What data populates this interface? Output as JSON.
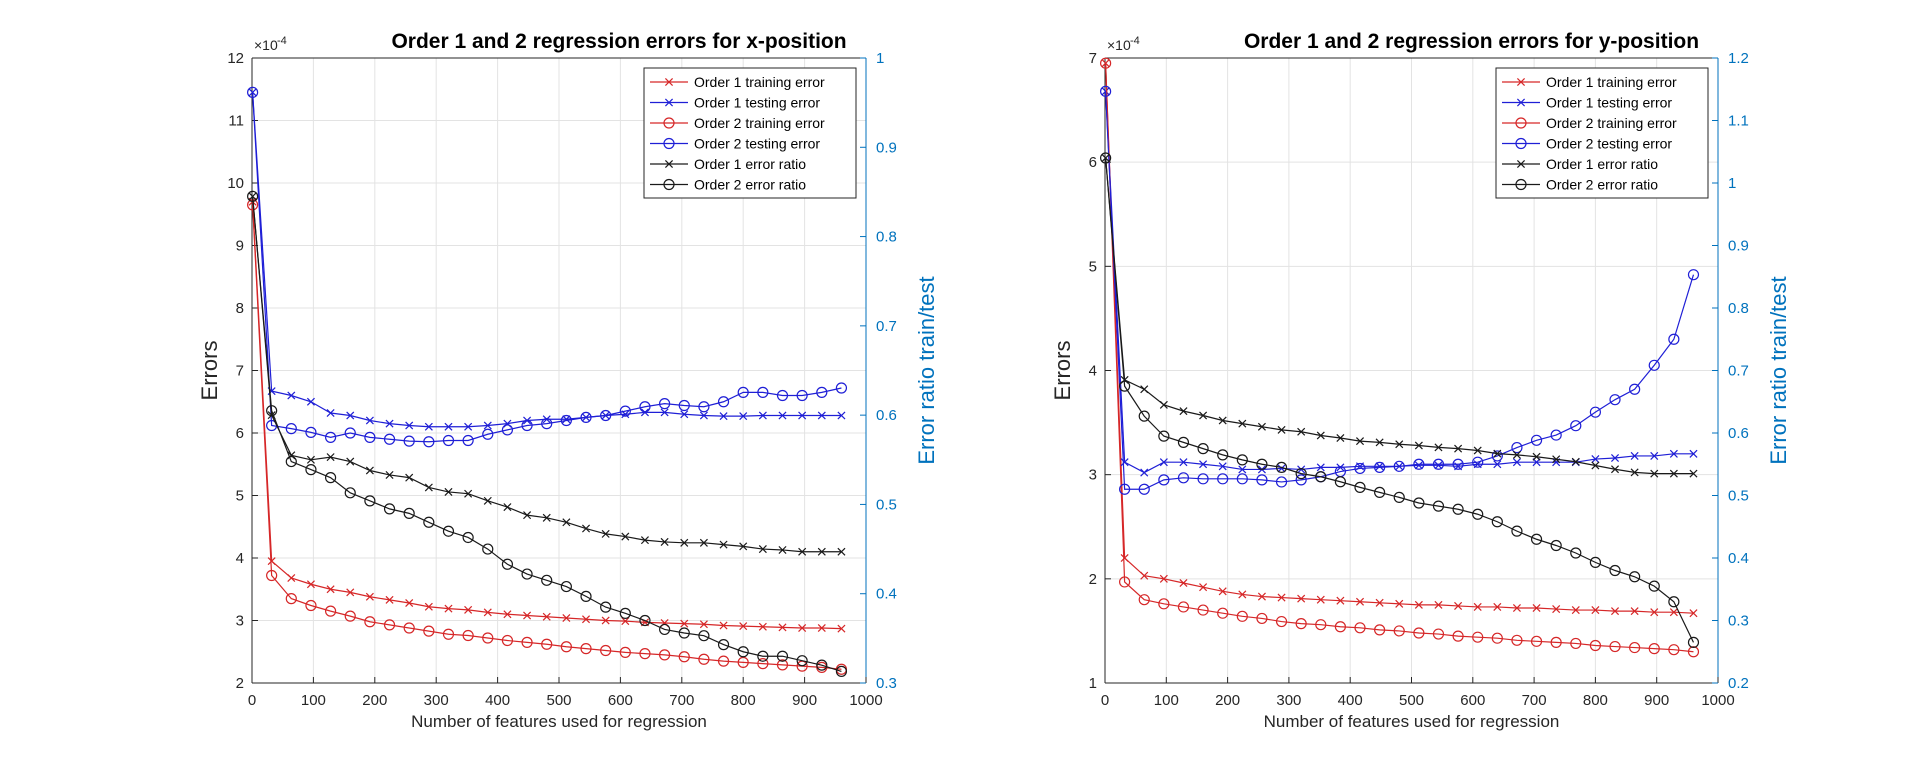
{
  "colors": {
    "red": "#d62728",
    "blue": "#1f1fd6",
    "black": "#1a1a1a",
    "right_axis": "#0072BD",
    "grid": "#e3e3e3"
  },
  "chart_data": [
    {
      "type": "line",
      "title": "Order 1 and 2 regression errors for x-position",
      "xlabel": "Number of features used for regression",
      "ylabel": "Errors",
      "y2label": "Error ratio train/test",
      "exponent_label": "×10",
      "exponent_power": "-4",
      "xlim": [
        0,
        1000
      ],
      "ylim": [
        2,
        12
      ],
      "y2lim": [
        0.3,
        1
      ],
      "xticks": [
        "0",
        "100",
        "200",
        "300",
        "400",
        "500",
        "600",
        "700",
        "800",
        "900",
        "1000"
      ],
      "yticks": [
        "2",
        "3",
        "4",
        "5",
        "6",
        "7",
        "8",
        "9",
        "10",
        "11",
        "12"
      ],
      "y2ticks": [
        "0.3",
        "0.4",
        "0.5",
        "0.6",
        "0.7",
        "0.8",
        "0.9",
        "1"
      ],
      "x": [
        1,
        32,
        64,
        96,
        128,
        160,
        192,
        224,
        256,
        288,
        320,
        352,
        384,
        416,
        448,
        480,
        512,
        544,
        576,
        608,
        640,
        672,
        704,
        736,
        768,
        800,
        832,
        864,
        896,
        928,
        960
      ],
      "legend": {
        "position": "top-right",
        "entries": [
          "Order 1 training error",
          "Order 1 testing error",
          "Order 2 training error",
          "Order 2 testing error",
          "Order 1 error ratio",
          "Order 2 error ratio"
        ]
      },
      "series": [
        {
          "name": "Order 1 training error",
          "axis": "left",
          "color": "red",
          "marker": "x",
          "values": [
            9.7,
            3.95,
            3.68,
            3.58,
            3.5,
            3.45,
            3.38,
            3.33,
            3.28,
            3.22,
            3.19,
            3.17,
            3.13,
            3.1,
            3.08,
            3.06,
            3.04,
            3.02,
            3.0,
            2.99,
            2.97,
            2.96,
            2.95,
            2.94,
            2.92,
            2.91,
            2.9,
            2.89,
            2.88,
            2.88,
            2.87
          ]
        },
        {
          "name": "Order 1 testing error",
          "axis": "left",
          "color": "blue",
          "marker": "x",
          "values": [
            11.45,
            6.67,
            6.6,
            6.5,
            6.32,
            6.28,
            6.2,
            6.15,
            6.12,
            6.1,
            6.1,
            6.1,
            6.12,
            6.15,
            6.2,
            6.22,
            6.22,
            6.25,
            6.28,
            6.3,
            6.33,
            6.33,
            6.3,
            6.28,
            6.27,
            6.27,
            6.28,
            6.28,
            6.28,
            6.28,
            6.28
          ]
        },
        {
          "name": "Order 2 training error",
          "axis": "left",
          "color": "red",
          "marker": "o",
          "values": [
            9.65,
            3.72,
            3.35,
            3.24,
            3.15,
            3.07,
            2.98,
            2.93,
            2.88,
            2.83,
            2.78,
            2.76,
            2.72,
            2.68,
            2.65,
            2.62,
            2.58,
            2.55,
            2.52,
            2.49,
            2.47,
            2.45,
            2.42,
            2.38,
            2.35,
            2.33,
            2.31,
            2.29,
            2.27,
            2.25,
            2.22
          ]
        },
        {
          "name": "Order 2 testing error",
          "axis": "left",
          "color": "blue",
          "marker": "o",
          "values": [
            11.45,
            6.12,
            6.07,
            6.01,
            5.93,
            6.0,
            5.93,
            5.9,
            5.87,
            5.86,
            5.88,
            5.88,
            5.98,
            6.05,
            6.12,
            6.15,
            6.2,
            6.25,
            6.28,
            6.35,
            6.42,
            6.47,
            6.44,
            6.42,
            6.5,
            6.65,
            6.65,
            6.6,
            6.6,
            6.65,
            6.72
          ]
        },
        {
          "name": "Order 1 error ratio",
          "axis": "right",
          "color": "black",
          "marker": "x",
          "values": [
            0.845,
            0.6,
            0.555,
            0.55,
            0.553,
            0.548,
            0.538,
            0.533,
            0.53,
            0.519,
            0.514,
            0.512,
            0.504,
            0.497,
            0.488,
            0.485,
            0.48,
            0.473,
            0.467,
            0.464,
            0.46,
            0.458,
            0.457,
            0.457,
            0.455,
            0.453,
            0.45,
            0.449,
            0.447,
            0.447,
            0.447
          ]
        },
        {
          "name": "Order 2 error ratio",
          "axis": "right",
          "color": "black",
          "marker": "o",
          "values": [
            0.845,
            0.605,
            0.548,
            0.539,
            0.53,
            0.513,
            0.504,
            0.495,
            0.49,
            0.48,
            0.47,
            0.463,
            0.45,
            0.433,
            0.422,
            0.415,
            0.408,
            0.397,
            0.385,
            0.378,
            0.37,
            0.36,
            0.356,
            0.353,
            0.343,
            0.335,
            0.33,
            0.33,
            0.325,
            0.32,
            0.313
          ]
        }
      ]
    },
    {
      "type": "line",
      "title": "Order 1 and 2 regression errors for y-position",
      "xlabel": "Number of features used for regression",
      "ylabel": "Errors",
      "y2label": "Error ratio train/test",
      "exponent_label": "×10",
      "exponent_power": "-4",
      "xlim": [
        0,
        1000
      ],
      "ylim": [
        1,
        7
      ],
      "y2lim": [
        0.2,
        1.2
      ],
      "xticks": [
        "0",
        "100",
        "200",
        "300",
        "400",
        "500",
        "600",
        "700",
        "800",
        "900",
        "1000"
      ],
      "yticks": [
        "1",
        "2",
        "3",
        "4",
        "5",
        "6",
        "7"
      ],
      "y2ticks": [
        "0.2",
        "0.3",
        "0.4",
        "0.5",
        "0.6",
        "0.7",
        "0.8",
        "0.9",
        "1",
        "1.1",
        "1.2"
      ],
      "x": [
        1,
        32,
        64,
        96,
        128,
        160,
        192,
        224,
        256,
        288,
        320,
        352,
        384,
        416,
        448,
        480,
        512,
        544,
        576,
        608,
        640,
        672,
        704,
        736,
        768,
        800,
        832,
        864,
        896,
        928,
        960
      ],
      "legend": {
        "position": "top-right",
        "entries": [
          "Order 1 training error",
          "Order 1 testing error",
          "Order 2 training error",
          "Order 2 testing error",
          "Order 1 error ratio",
          "Order 2 error ratio"
        ]
      },
      "series": [
        {
          "name": "Order 1 training error",
          "axis": "left",
          "color": "red",
          "marker": "x",
          "values": [
            6.95,
            2.2,
            2.03,
            2.0,
            1.96,
            1.92,
            1.88,
            1.85,
            1.83,
            1.82,
            1.81,
            1.8,
            1.79,
            1.78,
            1.77,
            1.76,
            1.75,
            1.75,
            1.74,
            1.73,
            1.73,
            1.72,
            1.72,
            1.71,
            1.7,
            1.7,
            1.69,
            1.69,
            1.68,
            1.68,
            1.67
          ]
        },
        {
          "name": "Order 1 testing error",
          "axis": "left",
          "color": "blue",
          "marker": "x",
          "values": [
            6.68,
            3.12,
            3.02,
            3.12,
            3.12,
            3.1,
            3.08,
            3.05,
            3.05,
            3.06,
            3.05,
            3.07,
            3.07,
            3.08,
            3.08,
            3.08,
            3.09,
            3.09,
            3.08,
            3.1,
            3.1,
            3.12,
            3.12,
            3.12,
            3.12,
            3.15,
            3.16,
            3.18,
            3.18,
            3.2,
            3.2
          ]
        },
        {
          "name": "Order 2 training error",
          "axis": "left",
          "color": "red",
          "marker": "o",
          "values": [
            6.95,
            1.97,
            1.8,
            1.76,
            1.73,
            1.7,
            1.67,
            1.64,
            1.62,
            1.59,
            1.57,
            1.56,
            1.54,
            1.53,
            1.51,
            1.5,
            1.48,
            1.47,
            1.45,
            1.44,
            1.43,
            1.41,
            1.4,
            1.39,
            1.38,
            1.36,
            1.35,
            1.34,
            1.33,
            1.32,
            1.3
          ]
        },
        {
          "name": "Order 2 testing error",
          "axis": "left",
          "color": "blue",
          "marker": "o",
          "values": [
            6.68,
            2.86,
            2.86,
            2.95,
            2.97,
            2.96,
            2.96,
            2.96,
            2.95,
            2.93,
            2.95,
            2.98,
            3.03,
            3.06,
            3.07,
            3.08,
            3.1,
            3.1,
            3.1,
            3.12,
            3.18,
            3.26,
            3.33,
            3.38,
            3.47,
            3.6,
            3.72,
            3.82,
            4.05,
            4.3,
            4.92
          ]
        },
        {
          "name": "Order 1 error ratio",
          "axis": "right",
          "color": "black",
          "marker": "x",
          "values": [
            1.04,
            0.685,
            0.67,
            0.645,
            0.635,
            0.628,
            0.62,
            0.615,
            0.61,
            0.605,
            0.602,
            0.596,
            0.592,
            0.587,
            0.585,
            0.582,
            0.58,
            0.577,
            0.575,
            0.572,
            0.567,
            0.565,
            0.562,
            0.558,
            0.554,
            0.548,
            0.542,
            0.537,
            0.535,
            0.535,
            0.535
          ]
        },
        {
          "name": "Order 2 error ratio",
          "axis": "right",
          "color": "black",
          "marker": "o",
          "values": [
            1.04,
            0.675,
            0.627,
            0.595,
            0.585,
            0.575,
            0.565,
            0.557,
            0.55,
            0.545,
            0.535,
            0.53,
            0.522,
            0.513,
            0.505,
            0.497,
            0.488,
            0.483,
            0.478,
            0.47,
            0.458,
            0.443,
            0.43,
            0.42,
            0.408,
            0.393,
            0.38,
            0.37,
            0.355,
            0.33,
            0.265
          ]
        }
      ]
    }
  ]
}
